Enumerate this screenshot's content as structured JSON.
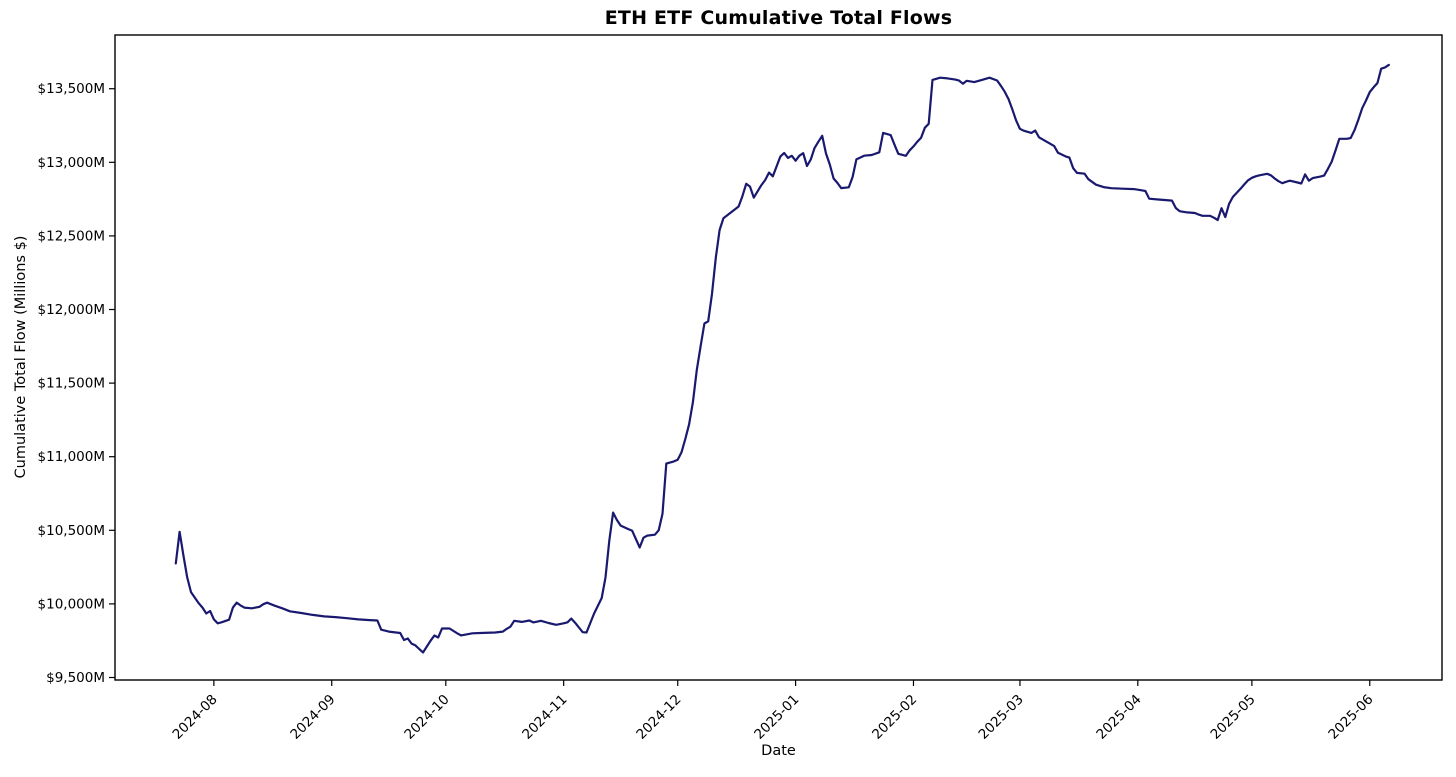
{
  "figure": {
    "background": "#ffffff",
    "text_color": "#000000",
    "spine_color": "#000000"
  },
  "chart_data": {
    "type": "line",
    "title": "ETH ETF Cumulative Total Flows",
    "xlabel": "Date",
    "ylabel": "Cumulative Total Flow (Millions $)",
    "line_color": "#191970",
    "grid": false,
    "legend": "none",
    "xlim": [
      "2024-07-06",
      "2025-06-20"
    ],
    "ylim": [
      9483,
      13865
    ],
    "x_ticks": [
      {
        "date": "2024-08-01",
        "label": "2024-08"
      },
      {
        "date": "2024-09-01",
        "label": "2024-09"
      },
      {
        "date": "2024-10-01",
        "label": "2024-10"
      },
      {
        "date": "2024-11-01",
        "label": "2024-11"
      },
      {
        "date": "2024-12-01",
        "label": "2024-12"
      },
      {
        "date": "2025-01-01",
        "label": "2025-01"
      },
      {
        "date": "2025-02-01",
        "label": "2025-02"
      },
      {
        "date": "2025-03-01",
        "label": "2025-03"
      },
      {
        "date": "2025-04-01",
        "label": "2025-04"
      },
      {
        "date": "2025-05-01",
        "label": "2025-05"
      },
      {
        "date": "2025-06-01",
        "label": "2025-06"
      }
    ],
    "y_ticks": [
      {
        "value": 9500,
        "label": "$9,500M"
      },
      {
        "value": 10000,
        "label": "$10,000M"
      },
      {
        "value": 10500,
        "label": "$10,500M"
      },
      {
        "value": 11000,
        "label": "$11,000M"
      },
      {
        "value": 11500,
        "label": "$11,500M"
      },
      {
        "value": 12000,
        "label": "$12,000M"
      },
      {
        "value": 12500,
        "label": "$12,500M"
      },
      {
        "value": 13000,
        "label": "$13,000M"
      },
      {
        "value": 13500,
        "label": "$13,500M"
      }
    ],
    "series": [
      {
        "name": "Cumulative Total Flow",
        "points": [
          [
            "2024-07-22",
            10275
          ],
          [
            "2024-07-23",
            10490
          ],
          [
            "2024-07-24",
            10330
          ],
          [
            "2024-07-25",
            10180
          ],
          [
            "2024-07-26",
            10080
          ],
          [
            "2024-07-28",
            10005
          ],
          [
            "2024-07-29",
            9975
          ],
          [
            "2024-07-30",
            9935
          ],
          [
            "2024-07-31",
            9952
          ],
          [
            "2024-08-01",
            9895
          ],
          [
            "2024-08-02",
            9868
          ],
          [
            "2024-08-03",
            9875
          ],
          [
            "2024-08-05",
            9893
          ],
          [
            "2024-08-06",
            9975
          ],
          [
            "2024-08-07",
            10008
          ],
          [
            "2024-08-08",
            9990
          ],
          [
            "2024-08-09",
            9975
          ],
          [
            "2024-08-11",
            9970
          ],
          [
            "2024-08-13",
            9980
          ],
          [
            "2024-08-14",
            9998
          ],
          [
            "2024-08-15",
            10008
          ],
          [
            "2024-08-17",
            9988
          ],
          [
            "2024-08-19",
            9970
          ],
          [
            "2024-08-21",
            9950
          ],
          [
            "2024-08-24",
            9938
          ],
          [
            "2024-08-27",
            9925
          ],
          [
            "2024-08-30",
            9915
          ],
          [
            "2024-09-02",
            9910
          ],
          [
            "2024-09-05",
            9903
          ],
          [
            "2024-09-08",
            9895
          ],
          [
            "2024-09-11",
            9890
          ],
          [
            "2024-09-13",
            9887
          ],
          [
            "2024-09-14",
            9825
          ],
          [
            "2024-09-16",
            9812
          ],
          [
            "2024-09-19",
            9802
          ],
          [
            "2024-09-20",
            9755
          ],
          [
            "2024-09-21",
            9765
          ],
          [
            "2024-09-22",
            9730
          ],
          [
            "2024-09-23",
            9718
          ],
          [
            "2024-09-25",
            9670
          ],
          [
            "2024-09-27",
            9750
          ],
          [
            "2024-09-28",
            9785
          ],
          [
            "2024-09-29",
            9772
          ],
          [
            "2024-09-30",
            9833
          ],
          [
            "2024-10-02",
            9833
          ],
          [
            "2024-10-04",
            9800
          ],
          [
            "2024-10-05",
            9786
          ],
          [
            "2024-10-08",
            9800
          ],
          [
            "2024-10-11",
            9803
          ],
          [
            "2024-10-14",
            9806
          ],
          [
            "2024-10-16",
            9812
          ],
          [
            "2024-10-17",
            9830
          ],
          [
            "2024-10-18",
            9845
          ],
          [
            "2024-10-19",
            9885
          ],
          [
            "2024-10-21",
            9878
          ],
          [
            "2024-10-23",
            9887
          ],
          [
            "2024-10-24",
            9874
          ],
          [
            "2024-10-26",
            9885
          ],
          [
            "2024-10-28",
            9870
          ],
          [
            "2024-10-30",
            9858
          ],
          [
            "2024-11-01",
            9868
          ],
          [
            "2024-11-02",
            9875
          ],
          [
            "2024-11-03",
            9900
          ],
          [
            "2024-11-04",
            9872
          ],
          [
            "2024-11-05",
            9840
          ],
          [
            "2024-11-06",
            9808
          ],
          [
            "2024-11-07",
            9806
          ],
          [
            "2024-11-08",
            9870
          ],
          [
            "2024-11-09",
            9935
          ],
          [
            "2024-11-11",
            10040
          ],
          [
            "2024-11-12",
            10180
          ],
          [
            "2024-11-13",
            10430
          ],
          [
            "2024-11-14",
            10620
          ],
          [
            "2024-11-15",
            10570
          ],
          [
            "2024-11-16",
            10532
          ],
          [
            "2024-11-18",
            10508
          ],
          [
            "2024-11-19",
            10498
          ],
          [
            "2024-11-21",
            10383
          ],
          [
            "2024-11-22",
            10450
          ],
          [
            "2024-11-23",
            10464
          ],
          [
            "2024-11-25",
            10470
          ],
          [
            "2024-11-26",
            10500
          ],
          [
            "2024-11-27",
            10613
          ],
          [
            "2024-11-28",
            10953
          ],
          [
            "2024-11-30",
            10968
          ],
          [
            "2024-12-01",
            10980
          ],
          [
            "2024-12-02",
            11030
          ],
          [
            "2024-12-03",
            11120
          ],
          [
            "2024-12-04",
            11220
          ],
          [
            "2024-12-05",
            11370
          ],
          [
            "2024-12-06",
            11590
          ],
          [
            "2024-12-07",
            11750
          ],
          [
            "2024-12-08",
            11905
          ],
          [
            "2024-12-09",
            11920
          ],
          [
            "2024-12-10",
            12107
          ],
          [
            "2024-12-11",
            12352
          ],
          [
            "2024-12-12",
            12540
          ],
          [
            "2024-12-13",
            12620
          ],
          [
            "2024-12-15",
            12660
          ],
          [
            "2024-12-17",
            12700
          ],
          [
            "2024-12-18",
            12770
          ],
          [
            "2024-12-19",
            12854
          ],
          [
            "2024-12-20",
            12835
          ],
          [
            "2024-12-21",
            12760
          ],
          [
            "2024-12-23",
            12845
          ],
          [
            "2024-12-24",
            12880
          ],
          [
            "2024-12-25",
            12930
          ],
          [
            "2024-12-26",
            12905
          ],
          [
            "2024-12-28",
            13040
          ],
          [
            "2024-12-29",
            13063
          ],
          [
            "2024-12-30",
            13030
          ],
          [
            "2024-12-31",
            13044
          ],
          [
            "2025-01-01",
            13011
          ],
          [
            "2025-01-02",
            13045
          ],
          [
            "2025-01-03",
            13062
          ],
          [
            "2025-01-04",
            12975
          ],
          [
            "2025-01-05",
            13020
          ],
          [
            "2025-01-06",
            13098
          ],
          [
            "2025-01-07",
            13140
          ],
          [
            "2025-01-08",
            13180
          ],
          [
            "2025-01-09",
            13060
          ],
          [
            "2025-01-10",
            12985
          ],
          [
            "2025-01-11",
            12890
          ],
          [
            "2025-01-12",
            12860
          ],
          [
            "2025-01-13",
            12825
          ],
          [
            "2025-01-15",
            12830
          ],
          [
            "2025-01-16",
            12900
          ],
          [
            "2025-01-17",
            13020
          ],
          [
            "2025-01-19",
            13045
          ],
          [
            "2025-01-21",
            13050
          ],
          [
            "2025-01-23",
            13068
          ],
          [
            "2025-01-24",
            13200
          ],
          [
            "2025-01-26",
            13185
          ],
          [
            "2025-01-27",
            13120
          ],
          [
            "2025-01-28",
            13058
          ],
          [
            "2025-01-30",
            13044
          ],
          [
            "2025-01-31",
            13082
          ],
          [
            "2025-02-01",
            13108
          ],
          [
            "2025-02-02",
            13140
          ],
          [
            "2025-02-03",
            13167
          ],
          [
            "2025-02-04",
            13235
          ],
          [
            "2025-02-05",
            13262
          ],
          [
            "2025-02-06",
            13560
          ],
          [
            "2025-02-08",
            13575
          ],
          [
            "2025-02-10",
            13570
          ],
          [
            "2025-02-12",
            13562
          ],
          [
            "2025-02-13",
            13555
          ],
          [
            "2025-02-14",
            13534
          ],
          [
            "2025-02-15",
            13554
          ],
          [
            "2025-02-17",
            13545
          ],
          [
            "2025-02-19",
            13560
          ],
          [
            "2025-02-21",
            13575
          ],
          [
            "2025-02-23",
            13556
          ],
          [
            "2025-02-24",
            13520
          ],
          [
            "2025-02-25",
            13480
          ],
          [
            "2025-02-26",
            13430
          ],
          [
            "2025-02-27",
            13360
          ],
          [
            "2025-02-28",
            13285
          ],
          [
            "2025-03-01",
            13228
          ],
          [
            "2025-03-02",
            13215
          ],
          [
            "2025-03-04",
            13200
          ],
          [
            "2025-03-05",
            13216
          ],
          [
            "2025-03-06",
            13170
          ],
          [
            "2025-03-08",
            13140
          ],
          [
            "2025-03-10",
            13110
          ],
          [
            "2025-03-11",
            13065
          ],
          [
            "2025-03-13",
            13040
          ],
          [
            "2025-03-14",
            13032
          ],
          [
            "2025-03-15",
            12960
          ],
          [
            "2025-03-16",
            12928
          ],
          [
            "2025-03-18",
            12923
          ],
          [
            "2025-03-19",
            12885
          ],
          [
            "2025-03-21",
            12848
          ],
          [
            "2025-03-23",
            12832
          ],
          [
            "2025-03-25",
            12824
          ],
          [
            "2025-03-28",
            12821
          ],
          [
            "2025-03-31",
            12818
          ],
          [
            "2025-04-02",
            12810
          ],
          [
            "2025-04-03",
            12805
          ],
          [
            "2025-04-04",
            12753
          ],
          [
            "2025-04-06",
            12748
          ],
          [
            "2025-04-08",
            12744
          ],
          [
            "2025-04-10",
            12740
          ],
          [
            "2025-04-11",
            12690
          ],
          [
            "2025-04-12",
            12668
          ],
          [
            "2025-04-14",
            12660
          ],
          [
            "2025-04-16",
            12656
          ],
          [
            "2025-04-17",
            12645
          ],
          [
            "2025-04-18",
            12637
          ],
          [
            "2025-04-20",
            12637
          ],
          [
            "2025-04-21",
            12624
          ],
          [
            "2025-04-22",
            12608
          ],
          [
            "2025-04-23",
            12688
          ],
          [
            "2025-04-24",
            12628
          ],
          [
            "2025-04-25",
            12718
          ],
          [
            "2025-04-26",
            12765
          ],
          [
            "2025-04-28",
            12820
          ],
          [
            "2025-04-29",
            12850
          ],
          [
            "2025-04-30",
            12878
          ],
          [
            "2025-05-01",
            12895
          ],
          [
            "2025-05-02",
            12905
          ],
          [
            "2025-05-03",
            12912
          ],
          [
            "2025-05-05",
            12922
          ],
          [
            "2025-05-06",
            12912
          ],
          [
            "2025-05-07",
            12890
          ],
          [
            "2025-05-08",
            12872
          ],
          [
            "2025-05-09",
            12858
          ],
          [
            "2025-05-10",
            12868
          ],
          [
            "2025-05-11",
            12875
          ],
          [
            "2025-05-13",
            12863
          ],
          [
            "2025-05-14",
            12856
          ],
          [
            "2025-05-15",
            12918
          ],
          [
            "2025-05-16",
            12875
          ],
          [
            "2025-05-17",
            12893
          ],
          [
            "2025-05-19",
            12903
          ],
          [
            "2025-05-20",
            12910
          ],
          [
            "2025-05-21",
            12955
          ],
          [
            "2025-05-22",
            13005
          ],
          [
            "2025-05-23",
            13080
          ],
          [
            "2025-05-24",
            13160
          ],
          [
            "2025-05-26",
            13160
          ],
          [
            "2025-05-27",
            13165
          ],
          [
            "2025-05-28",
            13218
          ],
          [
            "2025-05-29",
            13288
          ],
          [
            "2025-05-30",
            13368
          ],
          [
            "2025-05-31",
            13420
          ],
          [
            "2025-06-01",
            13478
          ],
          [
            "2025-06-02",
            13510
          ],
          [
            "2025-06-03",
            13538
          ],
          [
            "2025-06-04",
            13636
          ],
          [
            "2025-06-05",
            13645
          ],
          [
            "2025-06-06",
            13662
          ]
        ]
      }
    ]
  }
}
